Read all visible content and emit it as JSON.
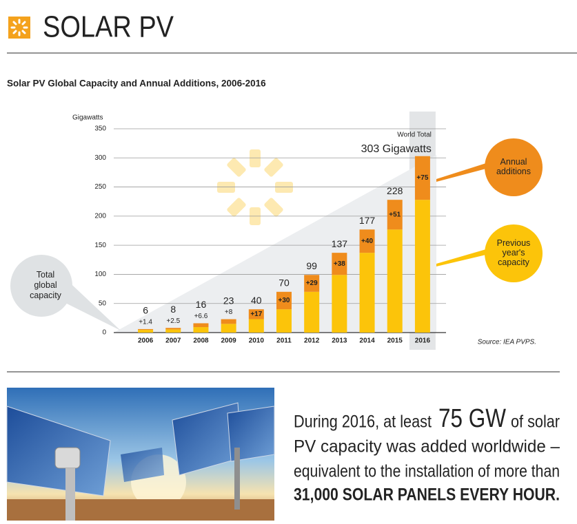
{
  "header": {
    "title": "SOLAR PV"
  },
  "chart_data": {
    "type": "stacked_bar",
    "title": "Solar PV Global Capacity and Annual Additions, 2006-2016",
    "y_label": "Gigawatts",
    "categories": [
      "2006",
      "2007",
      "2008",
      "2009",
      "2010",
      "2011",
      "2012",
      "2013",
      "2014",
      "2015",
      "2016"
    ],
    "series": [
      {
        "name": "Previous year's capacity",
        "color": "#fcc40a",
        "values": [
          4.6,
          5.5,
          9.4,
          15,
          23,
          40,
          70,
          99,
          137,
          177,
          228
        ]
      },
      {
        "name": "Annual additions",
        "color": "#ef8c1c",
        "values": [
          1.4,
          2.5,
          6.6,
          8,
          17,
          30,
          29,
          38,
          40,
          51,
          75
        ],
        "value_labels": [
          "+1.4",
          "+2.5",
          "+6.6",
          "+8",
          "+17",
          "+30",
          "+29",
          "+38",
          "+40",
          "+51",
          "+75"
        ]
      }
    ],
    "totals": [
      6,
      8,
      16,
      23,
      40,
      70,
      99,
      137,
      177,
      228,
      303
    ],
    "total_labels": [
      "6",
      "8",
      "16",
      "23",
      "40",
      "70",
      "99",
      "137",
      "177",
      "228",
      "303 Gigawatts"
    ],
    "total_name": "Total global capacity",
    "annotation": "World Total",
    "ylim": [
      0,
      350
    ],
    "yticks": [
      0,
      50,
      100,
      150,
      200,
      250,
      300,
      350
    ],
    "grid": true,
    "source": "Source: IEA PVPS."
  },
  "callout": {
    "line1_pre": "During 2016, at least",
    "highlight": "75 GW",
    "line1_post": "of solar",
    "line2": "PV capacity was added worldwide –",
    "line3": "equivalent to the installation of more than",
    "line4": "31,000 SOLAR PANELS EVERY HOUR."
  }
}
